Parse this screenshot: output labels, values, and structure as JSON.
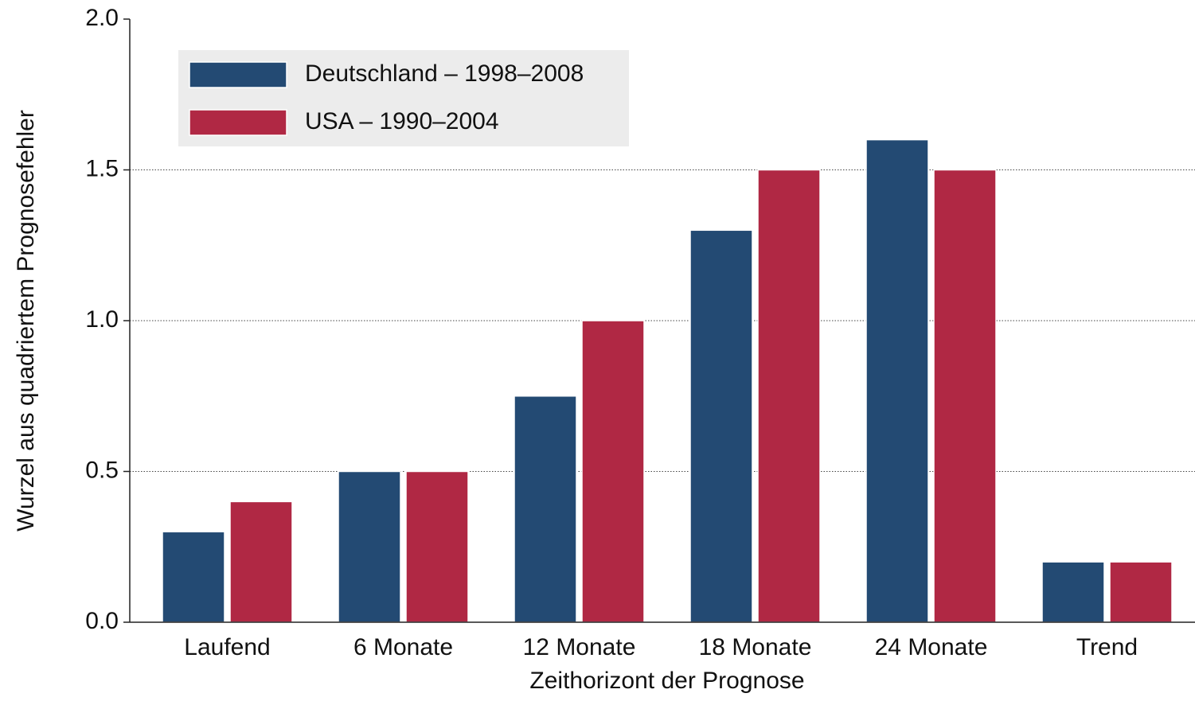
{
  "chart_data": {
    "type": "bar",
    "x_label": "Zeithorizont der Prognose",
    "y_label": "Wurzel aus quadriertem Prognosefehler",
    "categories": [
      "Laufend",
      "6 Monate",
      "12 Monate",
      "18 Monate",
      "24 Monate",
      "Trend"
    ],
    "series": [
      {
        "name": "Deutschland – 1998–2008",
        "color": "#234a73",
        "values": [
          0.3,
          0.5,
          0.75,
          1.3,
          1.6,
          0.2
        ]
      },
      {
        "name": "USA – 1990–2004",
        "color": "#b02844",
        "values": [
          0.4,
          0.5,
          1.0,
          1.5,
          1.5,
          0.2
        ]
      }
    ],
    "ylim": [
      0,
      2
    ],
    "yticks": [
      {
        "value": 0,
        "label": "0.0"
      },
      {
        "value": 0.5,
        "label": "0.5"
      },
      {
        "value": 1,
        "label": "1.0"
      },
      {
        "value": 1.5,
        "label": "1.5"
      },
      {
        "value": 2,
        "label": "2.0"
      }
    ],
    "grid": true,
    "legend": "upper left"
  }
}
